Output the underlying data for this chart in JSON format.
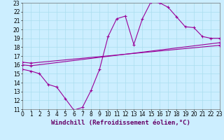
{
  "xlabel": "Windchill (Refroidissement éolien,°C)",
  "xlim": [
    0,
    23
  ],
  "ylim": [
    11,
    23
  ],
  "xticks": [
    0,
    1,
    2,
    3,
    4,
    5,
    6,
    7,
    8,
    9,
    10,
    11,
    12,
    13,
    14,
    15,
    16,
    17,
    18,
    19,
    20,
    21,
    22,
    23
  ],
  "yticks": [
    11,
    12,
    13,
    14,
    15,
    16,
    17,
    18,
    19,
    20,
    21,
    22,
    23
  ],
  "bg_color": "#cceeff",
  "grid_color": "#aaddee",
  "line_color": "#990099",
  "curve1_x": [
    0,
    1,
    2,
    3,
    4,
    5,
    6,
    7,
    8,
    9,
    10,
    11,
    12,
    13,
    14,
    15,
    16,
    17,
    18,
    19,
    20,
    21,
    22,
    23
  ],
  "curve1_y": [
    15.5,
    15.3,
    15.0,
    13.8,
    13.5,
    12.2,
    10.9,
    11.2,
    13.1,
    15.5,
    19.2,
    21.2,
    21.5,
    18.3,
    21.2,
    23.1,
    23.0,
    22.5,
    21.4,
    20.3,
    20.2,
    19.2,
    19.0,
    19.0
  ],
  "curve2_x": [
    0,
    1,
    23
  ],
  "curve2_y": [
    16.0,
    15.9,
    18.5
  ],
  "curve3_x": [
    0,
    1,
    23
  ],
  "curve3_y": [
    16.3,
    16.2,
    18.2
  ],
  "tick_fontsize": 5.5,
  "label_fontsize": 6.5
}
